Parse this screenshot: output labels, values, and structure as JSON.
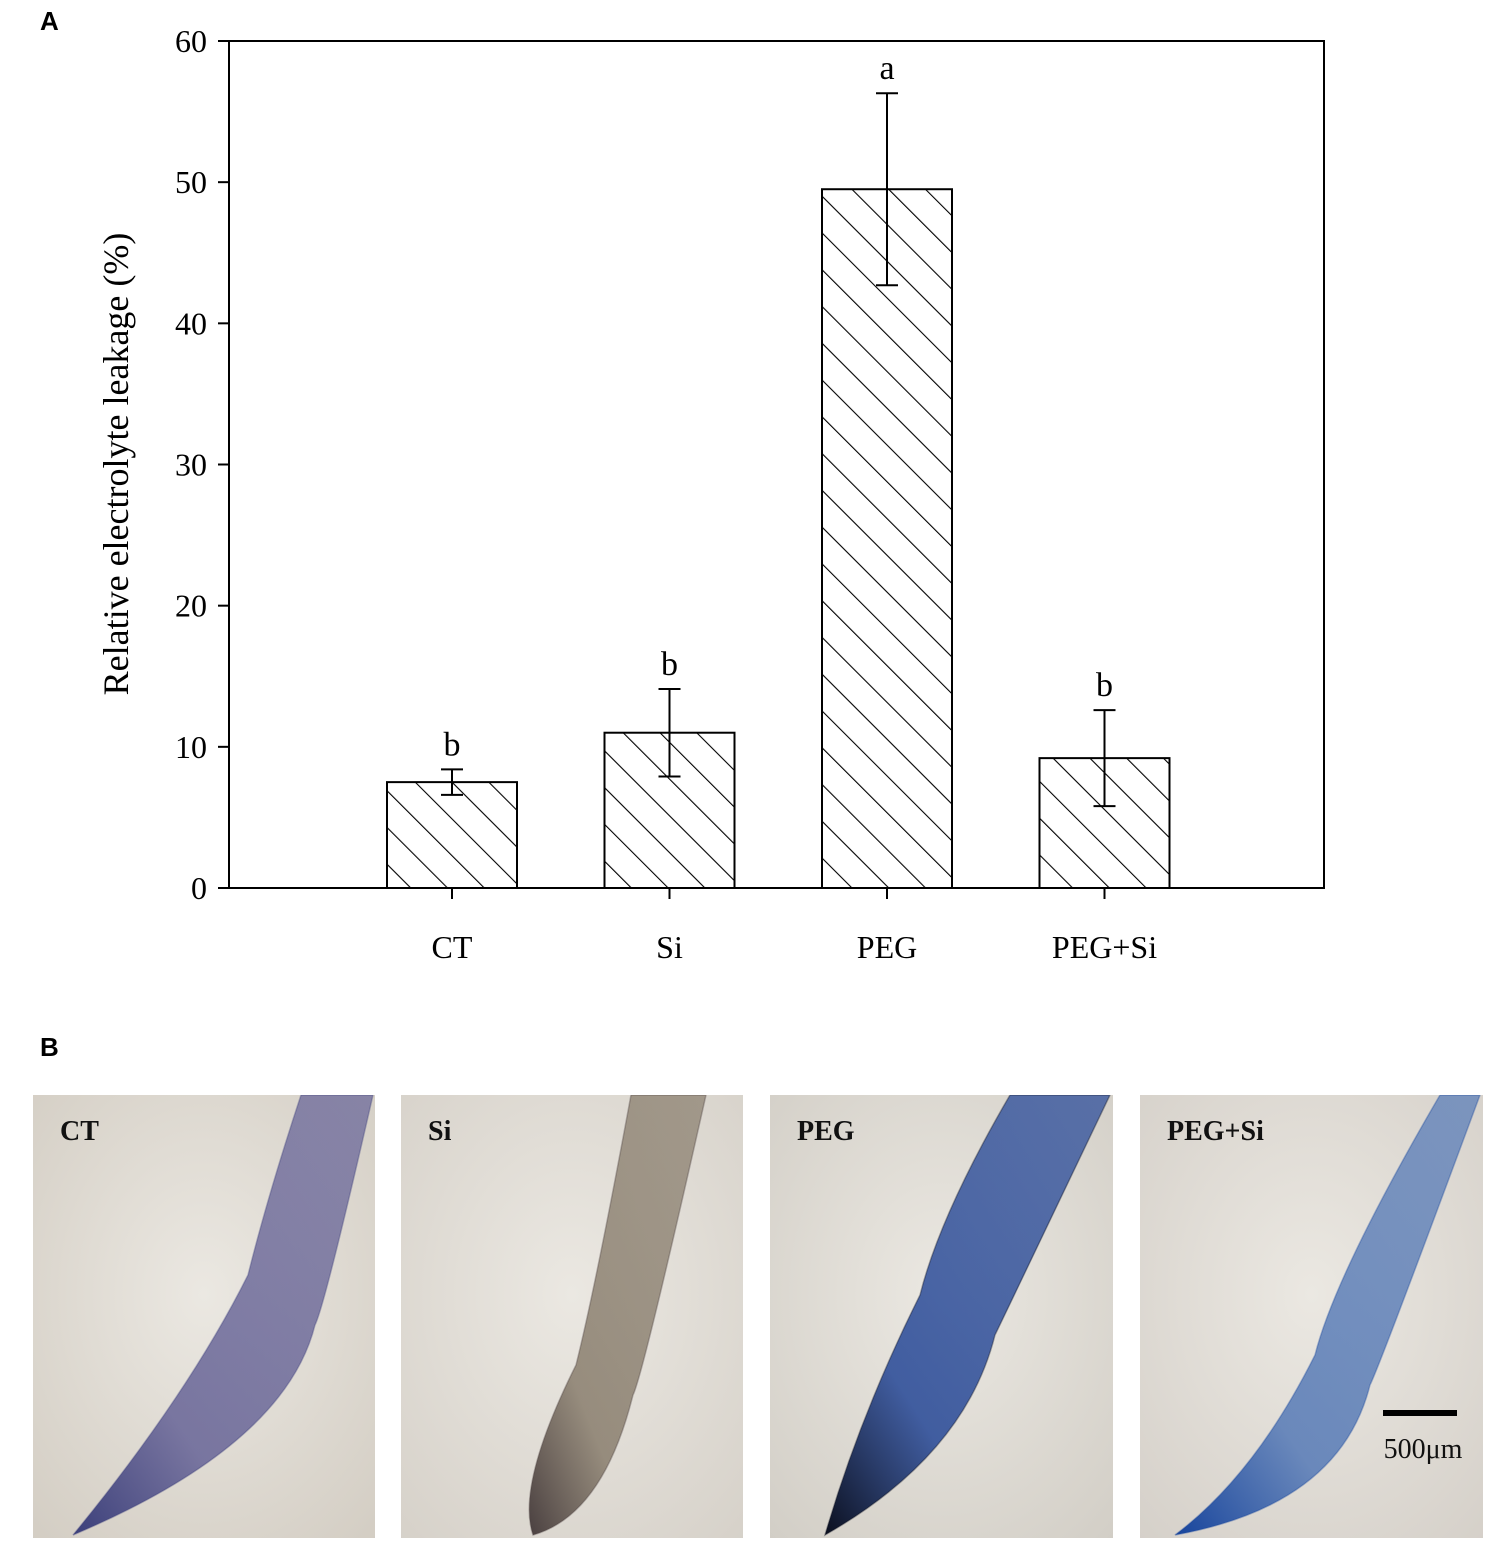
{
  "panel_a_label": "A",
  "panel_b_label": "B",
  "chart_data": {
    "type": "bar",
    "categories": [
      "CT",
      "Si",
      "PEG",
      "PEG+Si"
    ],
    "values": [
      7.5,
      11.0,
      49.5,
      9.2
    ],
    "errors": [
      0.9,
      3.1,
      6.8,
      3.4
    ],
    "significance": [
      "b",
      "b",
      "a",
      "b"
    ],
    "title": "",
    "xlabel": "",
    "ylabel": "Relative electrolyte leakage (%)",
    "ylim": [
      0,
      60
    ],
    "yticks": [
      0,
      10,
      20,
      30,
      40,
      50,
      60
    ],
    "bar_fill": "diagonal-hatch",
    "grid": false,
    "legend": "none"
  },
  "photos": {
    "items": [
      {
        "label": "CT",
        "stain": "light purple",
        "color": "#6d6a9a",
        "tip_color": "#3b3f7a",
        "bg": "#d3cdc3"
      },
      {
        "label": "Si",
        "stain": "pale brown",
        "color": "#8e8373",
        "tip_color": "#4a4040",
        "bg": "#d6d1c9"
      },
      {
        "label": "PEG",
        "stain": "dark blue",
        "color": "#2f4f9a",
        "tip_color": "#0b0f1e",
        "bg": "#d2cec6"
      },
      {
        "label": "PEG+Si",
        "stain": "light blue",
        "color": "#5d7fb8",
        "tip_color": "#17449c",
        "bg": "#d5d0c9"
      }
    ],
    "scale_bar_label": "500μm"
  },
  "colors": {
    "axis": "#000000",
    "bar_edge": "#000000",
    "hatch": "#000000"
  }
}
